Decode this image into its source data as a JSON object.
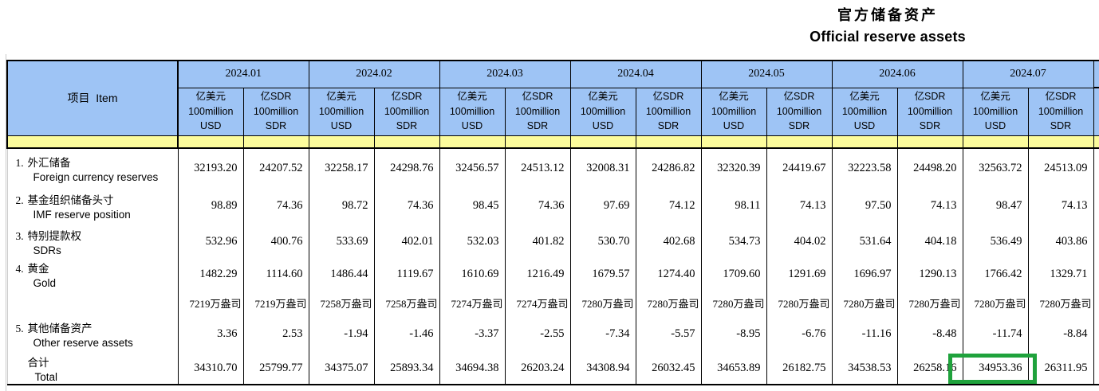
{
  "title": {
    "zh": "官方储备资产",
    "en": "Official reserve assets"
  },
  "table": {
    "item_header": "项目  Item",
    "months": [
      "2024.01",
      "2024.02",
      "2024.03",
      "2024.04",
      "2024.05",
      "2024.06",
      "2024.07"
    ],
    "unit_usd": {
      "zh": "亿美元",
      "line2": "100million",
      "line3": "USD"
    },
    "unit_sdr": {
      "zh": "亿SDR",
      "line2": "100million",
      "line3": "SDR"
    },
    "rows": [
      {
        "no": "1.",
        "zh": "外汇储备",
        "en": "Foreign currency reserves",
        "kind": "normal",
        "values": [
          "32193.20",
          "24207.52",
          "32258.17",
          "24298.76",
          "32456.57",
          "24513.12",
          "32008.31",
          "24286.82",
          "32320.39",
          "24419.67",
          "32223.58",
          "24498.20",
          "32563.72",
          "24513.09"
        ]
      },
      {
        "no": "2.",
        "zh": "基金组织储备头寸",
        "en": "IMF reserve position",
        "kind": "normal",
        "values": [
          "98.89",
          "74.36",
          "98.72",
          "74.36",
          "98.45",
          "74.36",
          "97.69",
          "74.12",
          "98.11",
          "74.13",
          "97.50",
          "74.13",
          "98.47",
          "74.13"
        ]
      },
      {
        "no": "3.",
        "zh": "特别提款权",
        "en": "SDRs",
        "kind": "normal",
        "values": [
          "532.96",
          "400.76",
          "533.69",
          "402.01",
          "532.03",
          "401.82",
          "530.70",
          "402.68",
          "534.73",
          "404.02",
          "531.64",
          "404.18",
          "536.49",
          "403.86"
        ]
      },
      {
        "no": "4.",
        "zh": "黄金",
        "en": "Gold",
        "kind": "normal",
        "values": [
          "1482.29",
          "1114.60",
          "1486.44",
          "1119.67",
          "1610.69",
          "1216.49",
          "1679.57",
          "1274.40",
          "1709.60",
          "1291.69",
          "1696.97",
          "1290.13",
          "1766.42",
          "1329.71"
        ]
      },
      {
        "no": "",
        "zh": "",
        "en": "",
        "kind": "ounce",
        "values": [
          "7219万盎司",
          "7219万盎司",
          "7258万盎司",
          "7258万盎司",
          "7274万盎司",
          "7274万盎司",
          "7280万盎司",
          "7280万盎司",
          "7280万盎司",
          "7280万盎司",
          "7280万盎司",
          "7280万盎司",
          "7280万盎司",
          "7280万盎司"
        ]
      },
      {
        "no": "5.",
        "zh": "其他储备资产",
        "en": "Other reserve assets",
        "kind": "normal",
        "values": [
          "3.36",
          "2.53",
          "-1.94",
          "-1.46",
          "-3.37",
          "-2.55",
          "-7.34",
          "-5.57",
          "-8.95",
          "-6.76",
          "-11.16",
          "-8.48",
          "-11.74",
          "-8.84"
        ]
      },
      {
        "no": "",
        "zh": "合计",
        "en": "Total",
        "kind": "total",
        "values": [
          "34310.70",
          "25799.77",
          "34375.07",
          "25893.34",
          "34694.38",
          "26203.24",
          "34308.94",
          "26032.45",
          "34653.89",
          "26182.75",
          "34538.53",
          "26258.16",
          "34953.36",
          "26311.95"
        ]
      }
    ],
    "highlight": {
      "row_zh": "合计",
      "row_en": "Total",
      "month": "2024.07",
      "unit": "亿美元 100million USD",
      "value": "34953.36",
      "color": "#1FA23C"
    }
  },
  "colors": {
    "header_blue": "#9EC4F5",
    "band_yellow": "#FCFC9C",
    "highlight_green": "#1FA23C",
    "border": "#000000"
  }
}
